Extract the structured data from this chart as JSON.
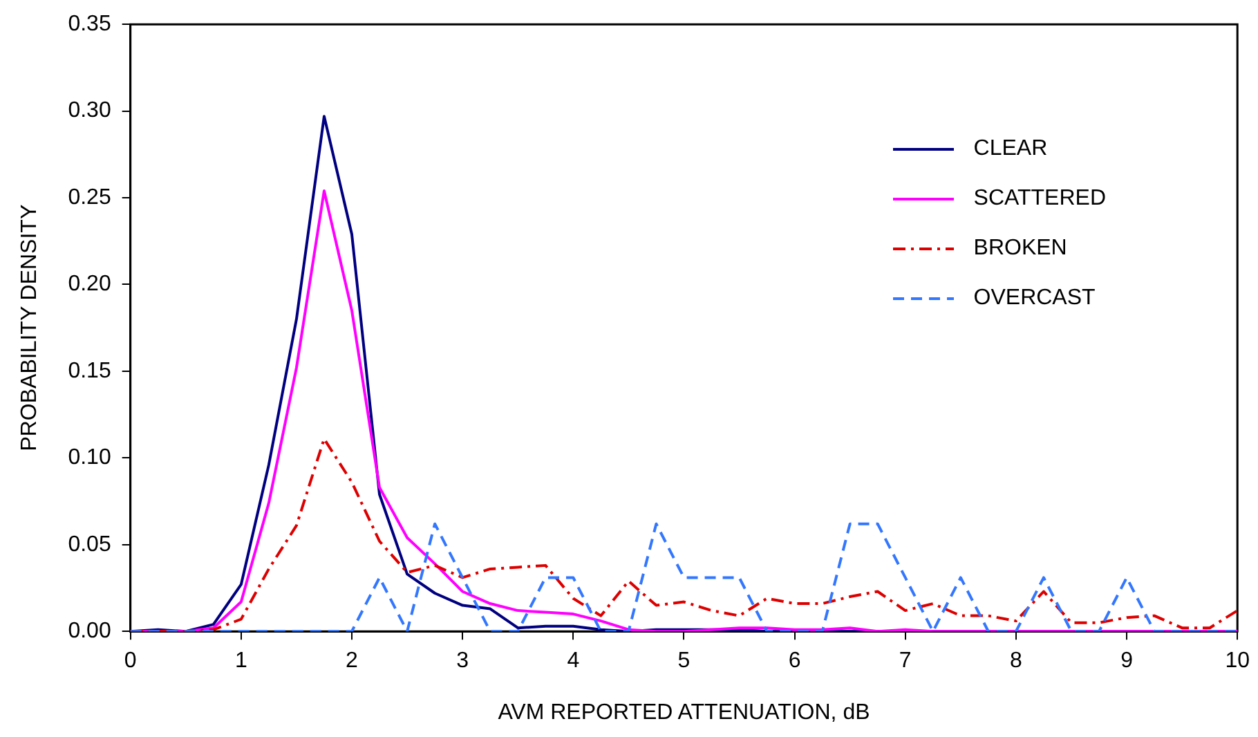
{
  "chart_data": {
    "type": "line",
    "xlabel": "AVM REPORTED ATTENUATION, dB",
    "ylabel": "PROBABILITY DENSITY",
    "x": [
      0,
      0.25,
      0.5,
      0.75,
      1,
      1.25,
      1.5,
      1.75,
      2,
      2.25,
      2.5,
      2.75,
      3,
      3.25,
      3.5,
      3.75,
      4,
      4.25,
      4.5,
      4.75,
      5,
      5.25,
      5.5,
      5.75,
      6,
      6.25,
      6.5,
      6.75,
      7,
      7.25,
      7.5,
      7.75,
      8,
      8.25,
      8.5,
      8.75,
      9,
      9.25,
      9.5,
      9.75,
      10
    ],
    "series": [
      {
        "name": "CLEAR",
        "color": "#000080",
        "line_style": "solid",
        "values": [
          0,
          0.001,
          0,
          0.004,
          0.027,
          0.096,
          0.18,
          0.297,
          0.229,
          0.079,
          0.033,
          0.022,
          0.015,
          0.013,
          0.002,
          0.003,
          0.003,
          0.001,
          0,
          0.001,
          0.001,
          0.001,
          0.001,
          0,
          0,
          0,
          0,
          0,
          0,
          0,
          0,
          0,
          0,
          0,
          0,
          0,
          0,
          0,
          0,
          0,
          0
        ]
      },
      {
        "name": "SCATTERED",
        "color": "#ff00ff",
        "line_style": "solid",
        "values": [
          0,
          0,
          0,
          0.002,
          0.017,
          0.074,
          0.152,
          0.254,
          0.185,
          0.083,
          0.054,
          0.039,
          0.023,
          0.016,
          0.012,
          0.011,
          0.01,
          0.006,
          0.001,
          0,
          0,
          0.001,
          0.002,
          0.002,
          0.001,
          0.001,
          0.002,
          0,
          0.001,
          0,
          0,
          0,
          0,
          0,
          0,
          0,
          0,
          0,
          0,
          0,
          0
        ]
      },
      {
        "name": "BROKEN",
        "color": "#dd0000",
        "line_style": "dashdot",
        "values": [
          0,
          0,
          0,
          0.001,
          0.007,
          0.036,
          0.061,
          0.111,
          0.086,
          0.052,
          0.034,
          0.038,
          0.031,
          0.036,
          0.037,
          0.038,
          0.019,
          0.009,
          0.029,
          0.015,
          0.017,
          0.012,
          0.009,
          0.019,
          0.016,
          0.016,
          0.02,
          0.023,
          0.012,
          0.016,
          0.009,
          0.009,
          0.006,
          0.023,
          0.005,
          0.005,
          0.008,
          0.009,
          0.002,
          0.002,
          0.012
        ]
      },
      {
        "name": "OVERCAST",
        "color": "#3377ff",
        "line_style": "dashed",
        "values": [
          0,
          0,
          0,
          0,
          0,
          0,
          0,
          0,
          0,
          0.031,
          0,
          0.062,
          0.031,
          0,
          0,
          0.031,
          0.031,
          0,
          0,
          0.062,
          0.031,
          0.031,
          0.031,
          0,
          0,
          0,
          0.062,
          0.062,
          0.031,
          0,
          0.031,
          0,
          0,
          0.031,
          0,
          0,
          0.031,
          0,
          0,
          0,
          0
        ]
      }
    ],
    "xlim": [
      0,
      10
    ],
    "xticks": [
      0,
      1,
      2,
      3,
      4,
      5,
      6,
      7,
      8,
      9,
      10
    ],
    "ylim": [
      0,
      0.35
    ],
    "yticks": [
      {
        "value": 0,
        "label": "0.00"
      },
      {
        "value": 0.05,
        "label": "0.05"
      },
      {
        "value": 0.1,
        "label": "0.10"
      },
      {
        "value": 0.15,
        "label": "0.15"
      },
      {
        "value": 0.2,
        "label": "0.20"
      },
      {
        "value": 0.25,
        "label": "0.25"
      },
      {
        "value": 0.3,
        "label": "0.30"
      },
      {
        "value": 0.35,
        "label": "0.35"
      }
    ],
    "grid": false,
    "legend": "top right",
    "marker": "none"
  }
}
